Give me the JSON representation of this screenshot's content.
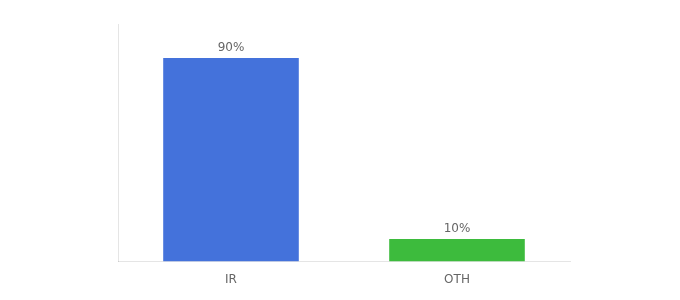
{
  "chart_data": {
    "type": "bar",
    "categories": [
      "IR",
      "OTH"
    ],
    "values": [
      90,
      10
    ],
    "value_labels": [
      "90%",
      "10%"
    ],
    "colors": [
      "#4472db",
      "#3dbb3d"
    ],
    "ylim": [
      0,
      105
    ],
    "grid": false,
    "data_labels": true,
    "tick_labels": "x"
  }
}
